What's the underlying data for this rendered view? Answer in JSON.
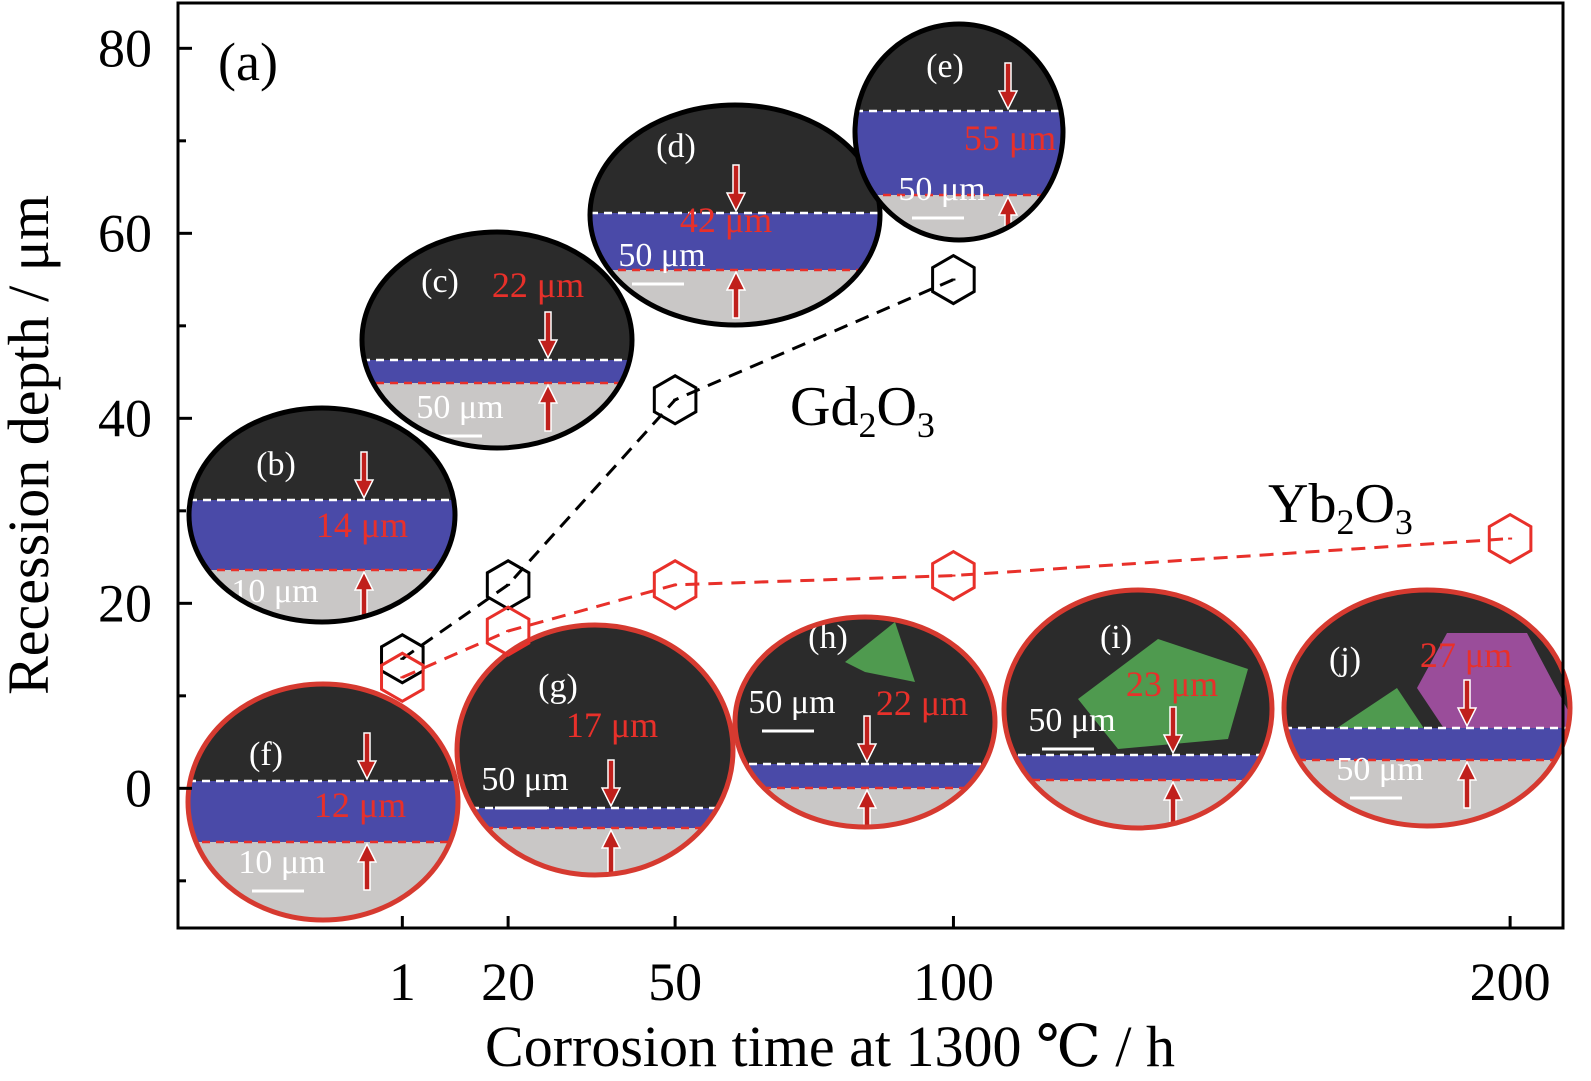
{
  "chart_data": {
    "type": "scatter",
    "panel_label": "(a)",
    "xlabel": "Corrosion time at 1300 ℃ / h",
    "ylabel": "Recession depth / μm",
    "xlim": [
      -39.3,
      209.5
    ],
    "ylim": [
      -15.1,
      84.9
    ],
    "xticks": [
      1,
      20,
      50,
      100,
      200
    ],
    "xtick_labels": [
      "1",
      "20",
      "50",
      "100",
      "200"
    ],
    "yticks": [
      0,
      20,
      40,
      60,
      80
    ],
    "ytick_labels": [
      "0",
      "20",
      "40",
      "60",
      "80"
    ],
    "yminor_ticks": [
      -10,
      10,
      30,
      50,
      70
    ],
    "grid": false,
    "series": [
      {
        "name": "Gd2O3",
        "label_main": "Gd",
        "label_sub1": "2",
        "label_mid": "O",
        "label_sub2": "3",
        "color": "#000000",
        "marker": "hexagon",
        "line": "dashed",
        "x": [
          1,
          20,
          50,
          100
        ],
        "y": [
          14,
          22,
          42,
          55
        ]
      },
      {
        "name": "Yb2O3",
        "label_main": "Yb",
        "label_sub1": "2",
        "label_mid": "O",
        "label_sub2": "3",
        "color": "#e8302a",
        "marker": "hexagon",
        "line": "dashed",
        "x": [
          1,
          20,
          50,
          100,
          200
        ],
        "y": [
          12,
          17,
          22,
          23,
          27
        ]
      }
    ],
    "insets": [
      {
        "label": "(b)",
        "depth": "14 μm",
        "scale": "10 μm",
        "series": "Gd2O3"
      },
      {
        "label": "(c)",
        "depth": "22 μm",
        "scale": "50 μm",
        "series": "Gd2O3"
      },
      {
        "label": "(d)",
        "depth": "42 μm",
        "scale": "50 μm",
        "series": "Gd2O3"
      },
      {
        "label": "(e)",
        "depth": "55 μm",
        "scale": "50 μm",
        "series": "Gd2O3"
      },
      {
        "label": "(f)",
        "depth": "12 μm",
        "scale": "10 μm",
        "series": "Yb2O3"
      },
      {
        "label": "(g)",
        "depth": "17 μm",
        "scale": "50 μm",
        "series": "Yb2O3"
      },
      {
        "label": "(h)",
        "depth": "22 μm",
        "scale": "50 μm",
        "series": "Yb2O3"
      },
      {
        "label": "(i)",
        "depth": "23 μm",
        "scale": "50 μm",
        "series": "Yb2O3"
      },
      {
        "label": "(j)",
        "depth": "27 μm",
        "scale": "50 μm",
        "series": "Yb2O3"
      }
    ],
    "colors": {
      "dark": "#2b2b2b",
      "band": "#4a4aa8",
      "substrate": "#c9c7c6",
      "depth_text": "#e8302a",
      "arrow": "#c0201c"
    }
  }
}
